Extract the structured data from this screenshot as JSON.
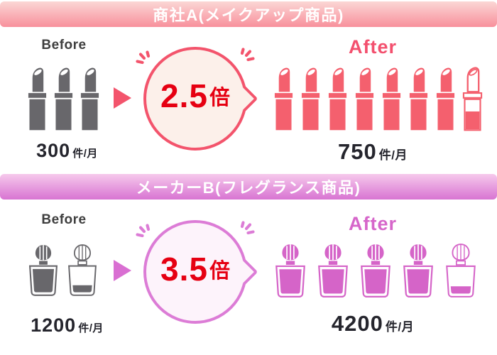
{
  "chart_data": [
    {
      "type": "pictogram",
      "title": "商社A(メイクアップ商品)",
      "unit": "件/月",
      "icon": "lipstick",
      "icon_unit_value": 100,
      "series": [
        {
          "name": "Before",
          "value": 300,
          "icons_full": 3,
          "icons_partial": 0
        },
        {
          "name": "After",
          "value": 750,
          "icons_full": 7,
          "icons_partial": 0.5
        }
      ],
      "multiplier": "2.5倍"
    },
    {
      "type": "pictogram",
      "title": "メーカーB(フレグランス商品)",
      "unit": "件/月",
      "icon": "perfume-bottle",
      "icon_unit_value": 1000,
      "series": [
        {
          "name": "Before",
          "value": 1200,
          "icons_full": 1,
          "icons_partial": 0.2
        },
        {
          "name": "After",
          "value": 4200,
          "icons_full": 4,
          "icons_partial": 0.2
        }
      ],
      "multiplier": "3.5倍"
    }
  ],
  "sections": [
    {
      "banner": {
        "label": "商社A(メイクアップ商品)",
        "gradient_top": "#fbd7d5",
        "gradient_bottom": "#f8909c"
      },
      "before": {
        "label": "Before",
        "icon": "lipstick",
        "icon_color": "#68676b",
        "count_full": 3,
        "partial": 0,
        "value": "300",
        "unit": "件/月"
      },
      "multiplier": {
        "value": "2.5",
        "suffix": "倍",
        "text_color": "#e60012",
        "border_color": "#f3546c",
        "fill_color": "#fcf0ea"
      },
      "after": {
        "label": "After",
        "label_color": "#f3506e",
        "icon": "lipstick",
        "icon_color": "#f4606e",
        "count_full": 7,
        "partial": 0.5,
        "value": "750",
        "unit": "件/月"
      },
      "arrow_color": "#f3546c"
    },
    {
      "banner": {
        "label": "メーカーB(フレグランス商品)",
        "gradient_top": "#f6c9ec",
        "gradient_bottom": "#d874d2"
      },
      "before": {
        "label": "Before",
        "icon": "bottle",
        "icon_color": "#68676b",
        "count_full": 1,
        "partial": 0.2,
        "value": "1200",
        "unit": "件/月"
      },
      "multiplier": {
        "value": "3.5",
        "suffix": "倍",
        "text_color": "#e60012",
        "border_color": "#dc7cd6",
        "fill_color": "#fdf3fb"
      },
      "after": {
        "label": "After",
        "label_color": "#d666ca",
        "icon": "bottle",
        "icon_color": "#d564c8",
        "count_full": 4,
        "partial": 0.2,
        "value": "4200",
        "unit": "件/月"
      },
      "arrow_color": "#d96fd2"
    }
  ]
}
